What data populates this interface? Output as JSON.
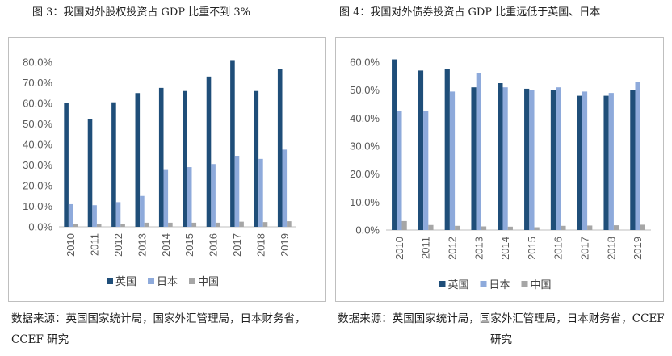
{
  "figures": [
    {
      "title": "图 3：我国对外股权投资占 GDP 比重不到 3%",
      "source": "数据来源：英国国家统计局，国家外汇管理局，日本财务省，CCEF 研究",
      "chart_data": {
        "type": "bar",
        "categories": [
          "2010",
          "2011",
          "2012",
          "2013",
          "2014",
          "2015",
          "2016",
          "2017",
          "2018",
          "2019"
        ],
        "series": [
          {
            "name": "英国",
            "color": "#1f4e79",
            "values": [
              60.0,
              52.5,
              60.5,
              65.0,
              67.5,
              66.0,
              73.0,
              81.0,
              66.0,
              76.5
            ]
          },
          {
            "name": "日本",
            "color": "#8eaadb",
            "values": [
              11.0,
              10.5,
              12.0,
              15.0,
              28.0,
              29.0,
              30.5,
              34.5,
              33.0,
              37.5
            ]
          },
          {
            "name": "中国",
            "color": "#a6a6a6",
            "values": [
              1.2,
              1.2,
              1.5,
              2.0,
              2.0,
              2.0,
              2.0,
              2.5,
              2.3,
              2.7
            ]
          }
        ],
        "ylim": [
          0,
          80
        ],
        "yticks": [
          "0.0%",
          "10.0%",
          "20.0%",
          "30.0%",
          "40.0%",
          "50.0%",
          "60.0%",
          "70.0%",
          "80.0%"
        ],
        "legend": "bottom",
        "grid": false
      }
    },
    {
      "title": "图 4：我国对外债券投资占 GDP 比重远低于英国、日本",
      "source": "数据来源：英国国家统计局，国家外汇管理局，日本财务省，CCEF 研究",
      "chart_data": {
        "type": "bar",
        "categories": [
          "2010",
          "2011",
          "2012",
          "2013",
          "2014",
          "2015",
          "2016",
          "2017",
          "2018",
          "2019"
        ],
        "series": [
          {
            "name": "英国",
            "color": "#1f4e79",
            "values": [
              61.0,
              57.0,
              57.5,
              51.0,
              52.5,
              50.5,
              50.0,
              48.0,
              48.0,
              50.0
            ]
          },
          {
            "name": "日本",
            "color": "#8eaadb",
            "values": [
              42.5,
              42.5,
              49.5,
              56.0,
              51.0,
              50.0,
              51.0,
              49.5,
              49.0,
              53.0
            ]
          },
          {
            "name": "中国",
            "color": "#a6a6a6",
            "values": [
              3.2,
              1.8,
              1.5,
              1.3,
              1.2,
              1.0,
              1.5,
              1.6,
              1.7,
              1.9
            ]
          }
        ],
        "ylim": [
          0,
          60
        ],
        "yticks": [
          "0.0%",
          "10.0%",
          "20.0%",
          "30.0%",
          "40.0%",
          "50.0%",
          "60.0%"
        ],
        "legend": "bottom",
        "grid": false
      }
    }
  ]
}
